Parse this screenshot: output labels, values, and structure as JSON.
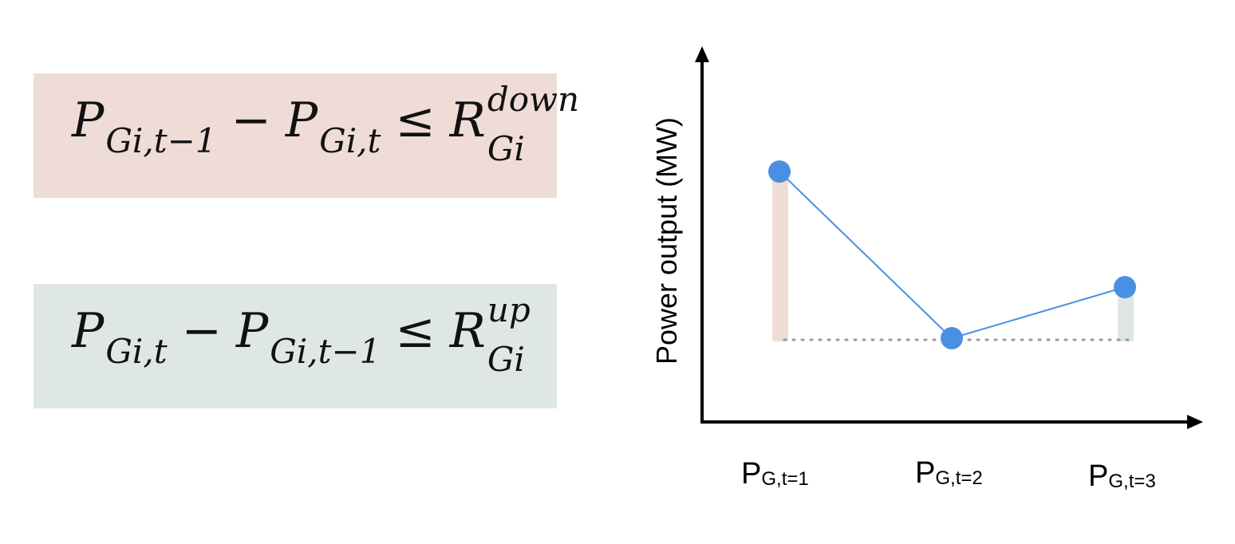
{
  "colors": {
    "down_box": "#efdcd6",
    "up_box": "#dfe7e6",
    "down_bar": "#efdcd6",
    "up_bar": "#dde6e5",
    "point": "#4a90e2",
    "line": "#4a90e2",
    "axis": "#000000",
    "baseline": "#999999"
  },
  "equations": {
    "down": {
      "t1_main": "P",
      "t1_sub": "Gi,t−1",
      "minus": "−",
      "t2_main": "P",
      "t2_sub": "Gi,t",
      "leq": "≤",
      "r_main": "R",
      "r_sup": "down",
      "r_sub": "Gi"
    },
    "up": {
      "t1_main": "P",
      "t1_sub": "Gi,t",
      "minus": "−",
      "t2_main": "P",
      "t2_sub": "Gi,t−1",
      "leq": "≤",
      "r_main": "R",
      "r_sup": "up",
      "r_sub": "Gi"
    }
  },
  "chart_data": {
    "type": "line",
    "ylabel": "Power output (MW)",
    "categories": [
      {
        "main": "P",
        "sub": "G,t=1"
      },
      {
        "main": "P",
        "sub": "G,t=2"
      },
      {
        "main": "P",
        "sub": "G,t=3"
      }
    ],
    "values": [
      0.66,
      0.04,
      0.23
    ],
    "baseline": 0.04,
    "ramp_bars": [
      {
        "category_index": 0,
        "from": 0.04,
        "to": 0.66,
        "kind": "down"
      },
      {
        "category_index": 2,
        "from": 0.04,
        "to": 0.23,
        "kind": "up"
      }
    ],
    "ylim": [
      0,
      1
    ]
  }
}
